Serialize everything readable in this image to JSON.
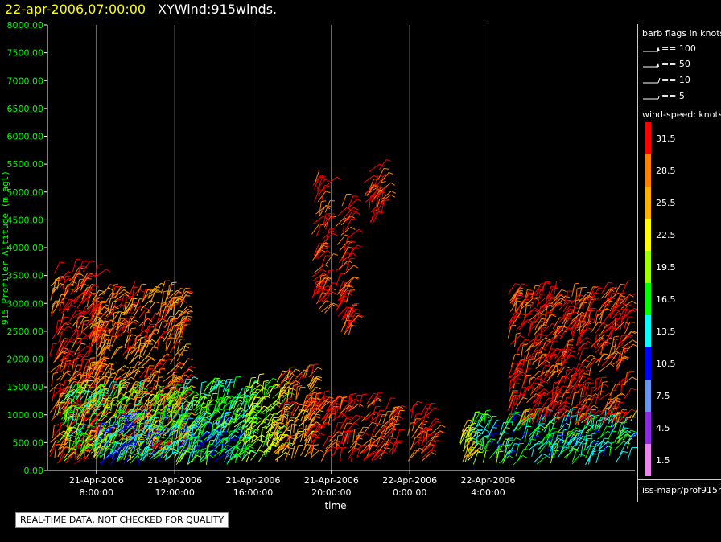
{
  "header": {
    "time": "22-apr-2006,07:00:00",
    "title": "XYWind:915winds."
  },
  "chart_data": {
    "type": "scatter",
    "xlabel": "time",
    "ylabel": "915 Profiler Altitude (m agl)",
    "ylim": [
      0,
      8000
    ],
    "yticks": [
      "0.00",
      "500.00",
      "1000.00",
      "1500.00",
      "2000.00",
      "2500.00",
      "3000.00",
      "3500.00",
      "4000.00",
      "4500.00",
      "5000.00",
      "5500.00",
      "6000.00",
      "6500.00",
      "7000.00",
      "7500.00",
      "8000.00"
    ],
    "xlim_hours": [
      5.5,
      35.5
    ],
    "xticks": [
      {
        "hour": 8,
        "date": "21-Apr-2006",
        "time": "8:00:00"
      },
      {
        "hour": 12,
        "date": "21-Apr-2006",
        "time": "12:00:00"
      },
      {
        "hour": 16,
        "date": "21-Apr-2006",
        "time": "16:00:00"
      },
      {
        "hour": 20,
        "date": "21-Apr-2006",
        "time": "20:00:00"
      },
      {
        "hour": 24,
        "date": "22-Apr-2006",
        "time": "0:00:00"
      },
      {
        "hour": 28,
        "date": "22-Apr-2006",
        "time": "4:00:00"
      }
    ],
    "grid": "vertical",
    "wind_regions": [
      {
        "t0": 5.6,
        "t1": 8.0,
        "h0": 100,
        "h1": 3600,
        "speed": 30
      },
      {
        "t0": 7.5,
        "t1": 12.5,
        "h0": 200,
        "h1": 3200,
        "speed": 28
      },
      {
        "t0": 6.0,
        "t1": 12.0,
        "h0": 150,
        "h1": 1400,
        "speed": 18
      },
      {
        "t0": 8.0,
        "t1": 15.0,
        "h0": 100,
        "h1": 900,
        "speed": 12
      },
      {
        "t0": 12.0,
        "t1": 16.0,
        "h0": 100,
        "h1": 1500,
        "speed": 17
      },
      {
        "t0": 15.5,
        "t1": 17.5,
        "h0": 150,
        "h1": 1500,
        "speed": 20
      },
      {
        "t0": 17.0,
        "t1": 19.0,
        "h0": 150,
        "h1": 1700,
        "speed": 27
      },
      {
        "t0": 18.5,
        "t1": 22.5,
        "h0": 150,
        "h1": 1200,
        "speed": 31
      },
      {
        "t0": 22.5,
        "t1": 23.3,
        "h0": 150,
        "h1": 1100,
        "speed": 31
      },
      {
        "t0": 19.0,
        "t1": 19.8,
        "h0": 2800,
        "h1": 5200,
        "speed": 31
      },
      {
        "t0": 20.2,
        "t1": 21.0,
        "h0": 2400,
        "h1": 4800,
        "speed": 31
      },
      {
        "t0": 21.6,
        "t1": 22.6,
        "h0": 4400,
        "h1": 5400,
        "speed": 31
      },
      {
        "t0": 23.9,
        "t1": 25.2,
        "h0": 150,
        "h1": 1100,
        "speed": 31
      },
      {
        "t0": 26.5,
        "t1": 27.1,
        "h0": 150,
        "h1": 700,
        "speed": 22
      },
      {
        "t0": 27.0,
        "t1": 35.3,
        "h0": 100,
        "h1": 900,
        "speed": 15
      },
      {
        "t0": 29.0,
        "t1": 35.0,
        "h0": 800,
        "h1": 3200,
        "speed": 31
      }
    ]
  },
  "legend": {
    "flags_title": "barb flags in knots",
    "flags": [
      "== 100",
      "== 50",
      "== 10",
      "== 5"
    ],
    "speed_title": "wind-speed: knots",
    "speeds": [
      {
        "label": "31.5",
        "color": "#ff0000"
      },
      {
        "label": "28.5",
        "color": "#ff8000"
      },
      {
        "label": "25.5",
        "color": "#ffb000"
      },
      {
        "label": "22.5",
        "color": "#ffff00"
      },
      {
        "label": "19.5",
        "color": "#a0ff00"
      },
      {
        "label": "16.5",
        "color": "#00ff00"
      },
      {
        "label": "13.5",
        "color": "#00ffff"
      },
      {
        "label": "10.5",
        "color": "#0000ff"
      },
      {
        "label": "7.5",
        "color": "#6495ed"
      },
      {
        "label": "4.5",
        "color": "#8a2be2"
      },
      {
        "label": "1.5",
        "color": "#ee82ee"
      }
    ],
    "source": "iss-mapr/prof915h"
  },
  "footer": {
    "quality_note": "REAL-TIME DATA, NOT CHECKED FOR QUALITY"
  }
}
